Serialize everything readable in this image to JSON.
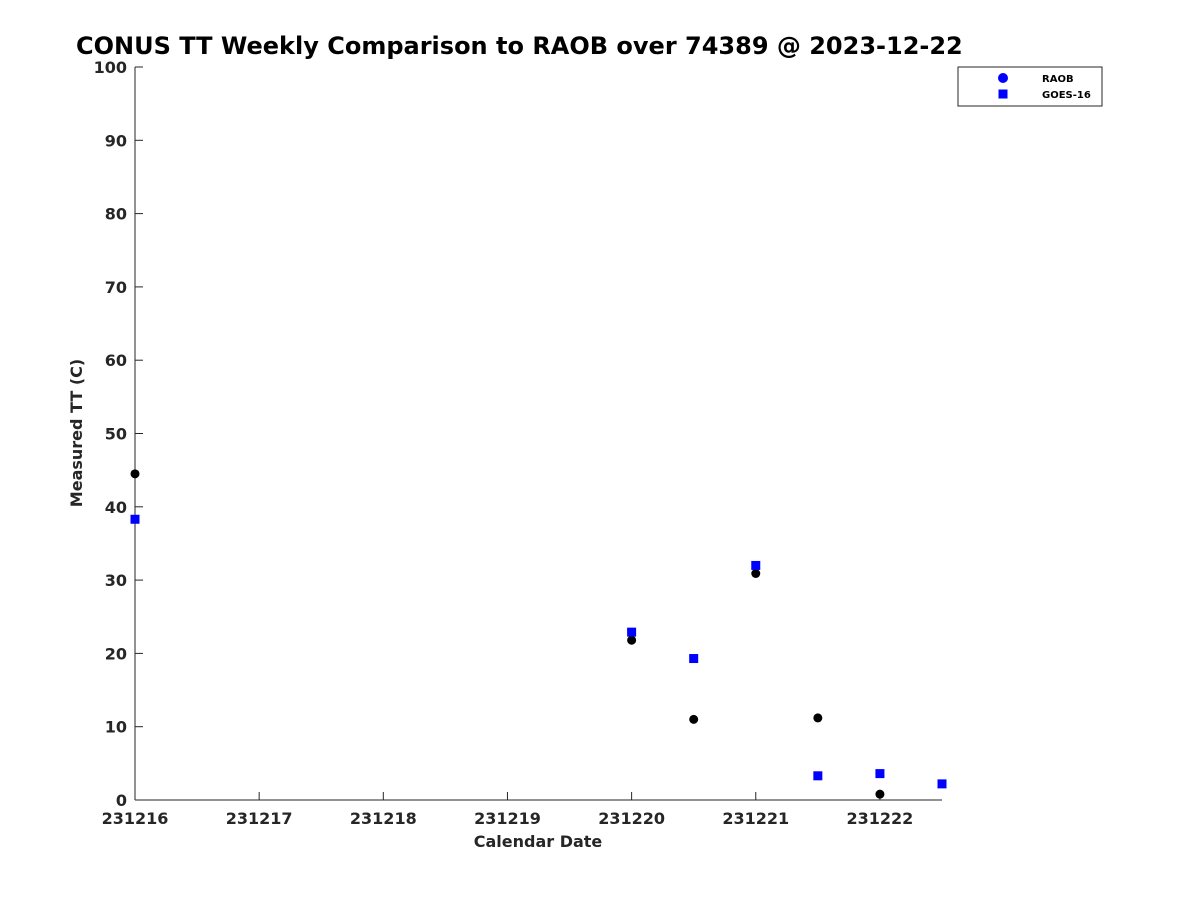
{
  "chart_data": {
    "type": "scatter",
    "title": "CONUS TT Weekly Comparison to RAOB over 74389 @ 2023-12-22",
    "xlabel": "Calendar Date",
    "ylabel": "Measured TT (C)",
    "xlim": [
      "2023-12-16T00:00",
      "2023-12-22T12:00"
    ],
    "ylim": [
      0,
      100
    ],
    "x_ticks": [
      "2023-12-16",
      "2023-12-17",
      "2023-12-18",
      "2023-12-19",
      "2023-12-20",
      "2023-12-21",
      "2023-12-22"
    ],
    "x_tick_labels": [
      "231216",
      "231217",
      "231218",
      "231219",
      "231220",
      "231221",
      "231222"
    ],
    "y_ticks": [
      0,
      10,
      20,
      30,
      40,
      50,
      60,
      70,
      80,
      90,
      100
    ],
    "grid": false,
    "legend_position": "top-right",
    "series": [
      {
        "name": "RAOB",
        "marker": "circle",
        "color": "#000000",
        "legend_color": "#0000ff",
        "points": [
          {
            "x": "2023-12-16T00:00",
            "y": 44.5
          },
          {
            "x": "2023-12-20T00:00",
            "y": 21.8
          },
          {
            "x": "2023-12-20T12:00",
            "y": 11.0
          },
          {
            "x": "2023-12-21T00:00",
            "y": 30.9
          },
          {
            "x": "2023-12-21T12:00",
            "y": 11.2
          },
          {
            "x": "2023-12-22T00:00",
            "y": 0.8
          }
        ]
      },
      {
        "name": "GOES-16",
        "marker": "square",
        "color": "#0000ff",
        "legend_color": "#0000ff",
        "points": [
          {
            "x": "2023-12-16T00:00",
            "y": 38.3
          },
          {
            "x": "2023-12-20T00:00",
            "y": 22.9
          },
          {
            "x": "2023-12-20T12:00",
            "y": 19.3
          },
          {
            "x": "2023-12-21T00:00",
            "y": 32.0
          },
          {
            "x": "2023-12-21T12:00",
            "y": 3.3
          },
          {
            "x": "2023-12-22T00:00",
            "y": 3.6
          },
          {
            "x": "2023-12-22T12:00",
            "y": 2.2
          }
        ]
      }
    ]
  }
}
